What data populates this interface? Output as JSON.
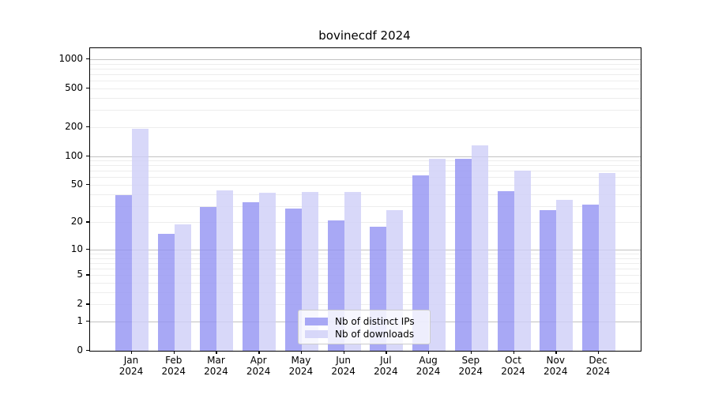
{
  "chart_data": {
    "type": "bar",
    "title": "bovinecdf 2024",
    "categories": [
      "Jan",
      "Feb",
      "Mar",
      "Apr",
      "May",
      "Jun",
      "Jul",
      "Aug",
      "Sep",
      "Oct",
      "Nov",
      "Dec"
    ],
    "category_year": "2024",
    "series": [
      {
        "name": "Nb of distinct IPs",
        "color": "rgba(146,146,243,0.8)",
        "values": [
          39,
          15,
          29,
          33,
          28,
          21,
          18,
          63,
          93,
          43,
          27,
          31
        ]
      },
      {
        "name": "Nb of downloads",
        "color": "rgba(206,206,247,0.8)",
        "values": [
          192,
          19,
          44,
          41,
          42,
          42,
          27,
          94,
          128,
          70,
          35,
          66
        ]
      }
    ],
    "y_scale": "log10(1+value)",
    "y_ticks": [
      0,
      1,
      2,
      5,
      10,
      20,
      50,
      100,
      200,
      500,
      1000
    ],
    "ylim": [
      0,
      1300
    ],
    "grid": {
      "major_values": [
        1,
        10,
        100,
        1000
      ],
      "major_color": "#c2c2c2",
      "minor_color": "#ededed"
    },
    "axis_color": "#000000",
    "legend_position": "bottom-center"
  }
}
